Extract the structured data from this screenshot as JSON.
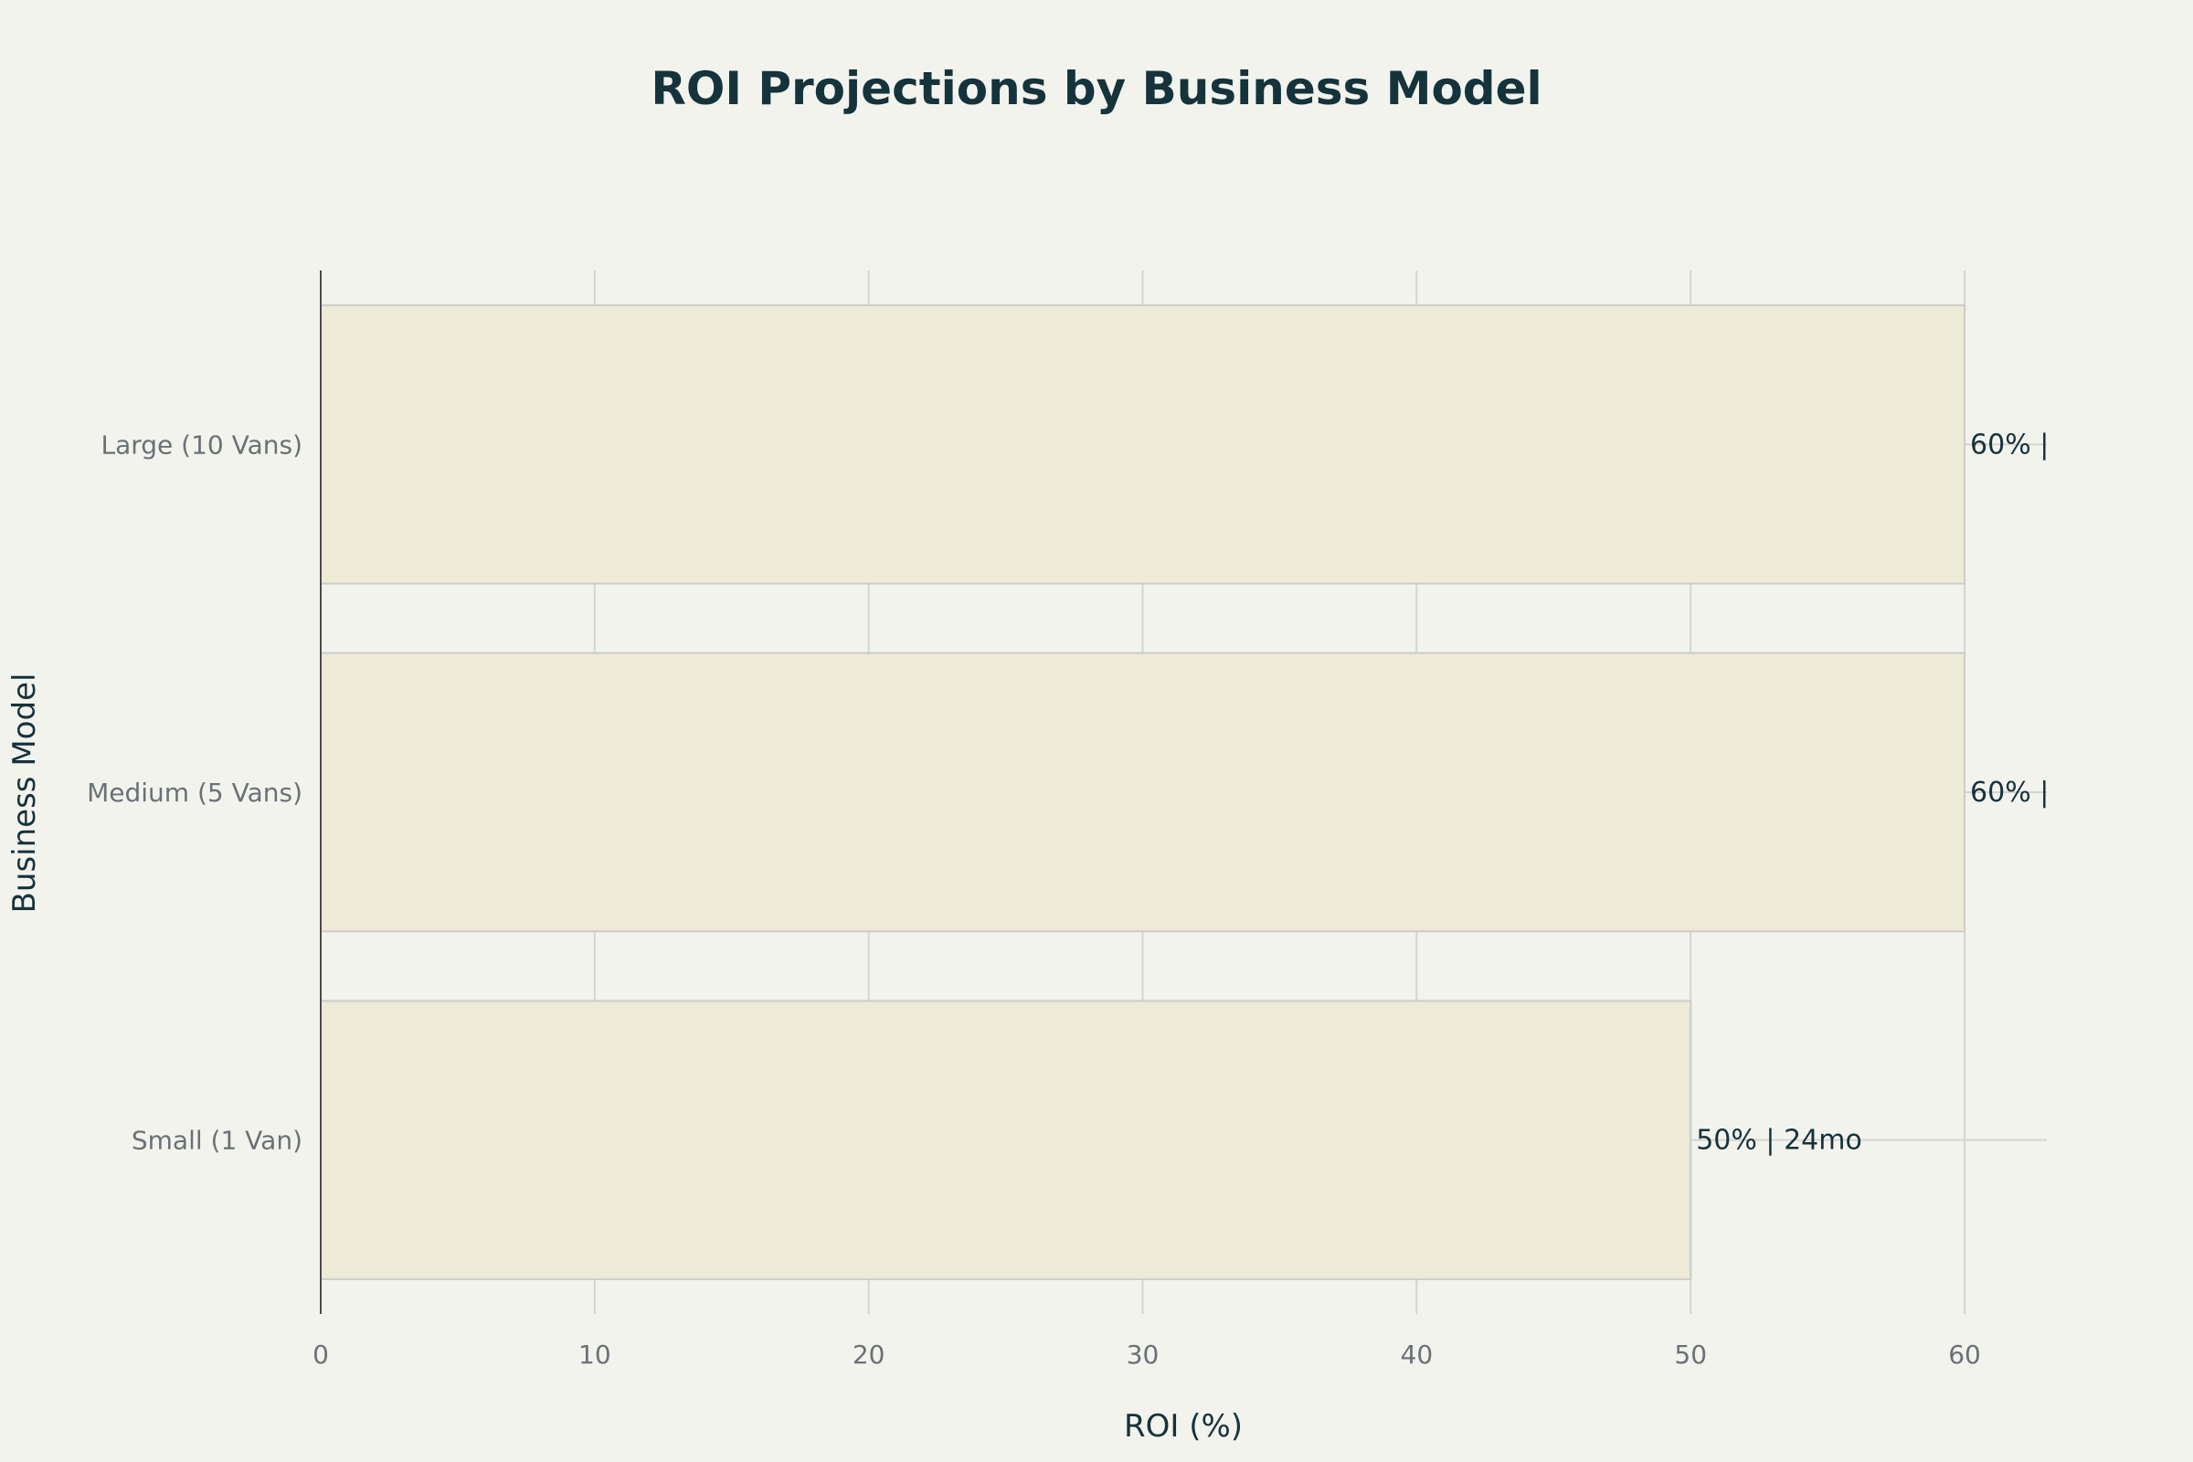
{
  "chart_data": {
    "type": "bar",
    "orientation": "horizontal",
    "title": "ROI Projections by Business Model",
    "xlabel": "ROI (%)",
    "ylabel": "Business Model",
    "categories": [
      "Small (1 Van)",
      "Medium (5 Vans)",
      "Large (10 Vans)"
    ],
    "values": [
      50,
      60,
      60
    ],
    "data_labels": [
      "50% | 24mo",
      "60% |",
      "60% |"
    ],
    "xlim": [
      0,
      63
    ],
    "x_ticks": [
      0,
      10,
      20,
      30,
      40,
      50,
      60
    ],
    "grid": true,
    "legend": "none",
    "colors": {
      "bar_fill": "#edebd8",
      "background": "#f3f3ee",
      "title": "#15333b"
    }
  }
}
